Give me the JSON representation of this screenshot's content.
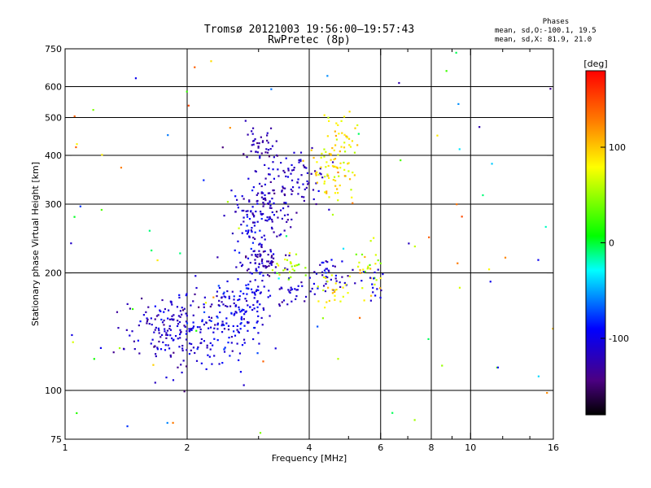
{
  "chart_data": {
    "type": "scatter",
    "title": "Tromsø 20121003 19:56:00–19:57:43",
    "subtitle": "RwPretec (8p)",
    "xlabel": "Frequency [MHz]",
    "ylabel": "Stationary phase Virtual Height [km]",
    "x_scale": "log",
    "y_scale": "log",
    "xlim": [
      1,
      16
    ],
    "ylim": [
      75,
      750
    ],
    "x_ticks": [
      1,
      2,
      4,
      6,
      8,
      10,
      16
    ],
    "x_tick_labels": [
      "1",
      "2",
      "4",
      "6",
      "8",
      "10",
      "16"
    ],
    "x_minor_ticks": [
      3,
      5,
      7,
      9,
      12,
      14
    ],
    "y_ticks": [
      75,
      100,
      200,
      300,
      400,
      500,
      600,
      750
    ],
    "y_tick_labels": [
      "75",
      "100",
      "200",
      "300",
      "400",
      "500",
      "600",
      "750"
    ],
    "grid": true,
    "grid_x": [
      2,
      4,
      6,
      8,
      10
    ],
    "grid_y": [
      100,
      200,
      300,
      400,
      500,
      600
    ],
    "colorbar": {
      "title": "[deg]",
      "min": -180,
      "max": 180,
      "ticks": [
        100,
        0,
        -100
      ],
      "tick_labels": [
        "100",
        "0",
        "-100"
      ]
    },
    "stats": {
      "header": "Phases",
      "line1": "mean, sd,O:-100.1, 19.5",
      "line2": "mean, sd,X:  81.9, 21.0"
    },
    "clusters": [
      {
        "x": 1.85,
        "y": 140,
        "dx": 0.22,
        "dy": 14,
        "n": 160,
        "phase": -115,
        "phase_sd": 15
      },
      {
        "x": 2.55,
        "y": 150,
        "dx": 0.3,
        "dy": 18,
        "n": 170,
        "phase": -105,
        "phase_sd": 15
      },
      {
        "x": 2.95,
        "y": 180,
        "dx": 0.12,
        "dy": 20,
        "n": 40,
        "phase": -100,
        "phase_sd": 12
      },
      {
        "x": 2.9,
        "y": 260,
        "dx": 0.15,
        "dy": 35,
        "n": 60,
        "phase": -100,
        "phase_sd": 12
      },
      {
        "x": 3.1,
        "y": 300,
        "dx": 0.25,
        "dy": 25,
        "n": 90,
        "phase": -120,
        "phase_sd": 12
      },
      {
        "x": 3.7,
        "y": 350,
        "dx": 0.35,
        "dy": 30,
        "n": 80,
        "phase": -115,
        "phase_sd": 12
      },
      {
        "x": 3.05,
        "y": 430,
        "dx": 0.15,
        "dy": 25,
        "n": 40,
        "phase": -125,
        "phase_sd": 10
      },
      {
        "x": 3.1,
        "y": 215,
        "dx": 0.2,
        "dy": 8,
        "n": 60,
        "phase": -125,
        "phase_sd": 10
      },
      {
        "x": 3.7,
        "y": 180,
        "dx": 0.2,
        "dy": 8,
        "n": 30,
        "phase": -115,
        "phase_sd": 10
      },
      {
        "x": 4.55,
        "y": 200,
        "dx": 0.25,
        "dy": 10,
        "n": 40,
        "phase": -105,
        "phase_sd": 15
      },
      {
        "x": 4.6,
        "y": 360,
        "dx": 0.3,
        "dy": 35,
        "n": 70,
        "phase": 85,
        "phase_sd": 18
      },
      {
        "x": 4.8,
        "y": 440,
        "dx": 0.2,
        "dy": 30,
        "n": 30,
        "phase": 90,
        "phase_sd": 15
      },
      {
        "x": 3.6,
        "y": 205,
        "dx": 0.2,
        "dy": 8,
        "n": 25,
        "phase": 60,
        "phase_sd": 15
      },
      {
        "x": 4.6,
        "y": 175,
        "dx": 0.25,
        "dy": 10,
        "n": 25,
        "phase": 85,
        "phase_sd": 15
      },
      {
        "x": 5.7,
        "y": 210,
        "dx": 0.2,
        "dy": 20,
        "n": 30,
        "phase": 75,
        "phase_sd": 25
      },
      {
        "x": 5.7,
        "y": 190,
        "dx": 0.15,
        "dy": 10,
        "n": 15,
        "phase": -105,
        "phase_sd": 10
      }
    ],
    "scatter_noise": {
      "n": 90,
      "phase_min": -150,
      "phase_max": 150
    }
  }
}
